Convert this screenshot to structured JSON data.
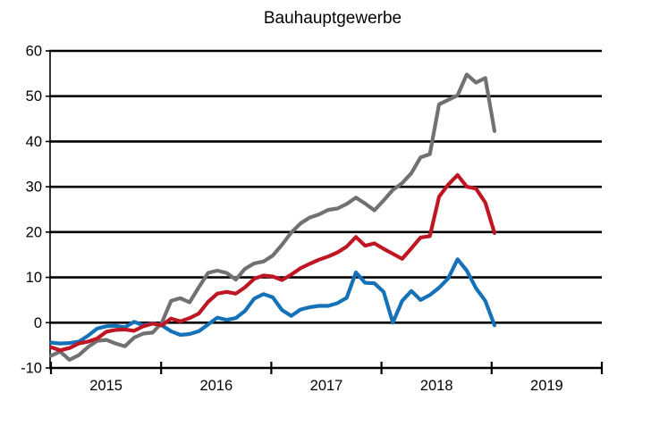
{
  "page": {
    "background": "#ffffff"
  },
  "chart_data": {
    "type": "line",
    "title": "Bauhauptgewerbe",
    "x_axis": {
      "tick_labels": [
        "2015",
        "2016",
        "2017",
        "2018",
        "2019"
      ],
      "start": "2015-01",
      "end": "2019-01",
      "frequency": "monthly"
    },
    "y_axis": {
      "ticks": [
        60,
        50,
        40,
        30,
        20,
        10,
        0,
        -10
      ],
      "min": -10,
      "max": 60
    },
    "grid": {
      "horizontal": true,
      "vertical": false,
      "color": "#000000"
    },
    "legend_position": "none",
    "series": [
      {
        "name": "gray-line",
        "color": "#717171",
        "values": [
          -7.3,
          -6.4,
          -8.2,
          -7.2,
          -5.4,
          -4.0,
          -3.8,
          -4.6,
          -5.2,
          -3.3,
          -2.4,
          -2.2,
          0.0,
          4.8,
          5.4,
          4.5,
          7.8,
          11.0,
          11.5,
          11.0,
          9.5,
          11.9,
          13.1,
          13.5,
          14.8,
          17.2,
          19.9,
          21.9,
          23.2,
          23.9,
          24.9,
          25.2,
          26.2,
          27.6,
          26.3,
          24.8,
          27.0,
          29.3,
          30.8,
          33.0,
          36.5,
          37.2,
          48.2,
          49.2,
          50.2,
          54.8,
          53.0,
          54.0,
          42.3
        ]
      },
      {
        "name": "blue-line",
        "color": "#1572B8",
        "values": [
          -4.4,
          -4.6,
          -4.5,
          -4.2,
          -2.9,
          -1.3,
          -0.8,
          -0.7,
          -1.0,
          0.2,
          -0.6,
          -0.1,
          -0.6,
          -1.9,
          -2.7,
          -2.5,
          -1.9,
          -0.4,
          1.1,
          0.6,
          1.0,
          2.6,
          5.3,
          6.3,
          5.6,
          2.8,
          1.5,
          2.9,
          3.4,
          3.7,
          3.7,
          4.3,
          5.5,
          11.1,
          8.8,
          8.7,
          6.8,
          0.0,
          4.8,
          7.0,
          5.0,
          6.1,
          7.7,
          9.8,
          14.0,
          11.5,
          7.6,
          4.8,
          -0.6
        ]
      },
      {
        "name": "red-line",
        "color": "#BE1622",
        "values": [
          -5.4,
          -6.1,
          -5.6,
          -4.6,
          -4.2,
          -3.5,
          -2.0,
          -1.6,
          -1.5,
          -1.8,
          -0.8,
          -0.2,
          -0.6,
          0.9,
          0.3,
          1.0,
          2.0,
          4.6,
          6.4,
          6.8,
          6.4,
          7.8,
          9.7,
          10.4,
          10.2,
          9.4,
          10.6,
          12.0,
          13.0,
          13.9,
          14.6,
          15.5,
          16.8,
          18.9,
          17.0,
          17.5,
          16.3,
          15.2,
          14.1,
          16.4,
          18.8,
          19.1,
          27.8,
          30.5,
          32.6,
          30.0,
          29.6,
          26.5,
          19.8
        ]
      }
    ]
  }
}
